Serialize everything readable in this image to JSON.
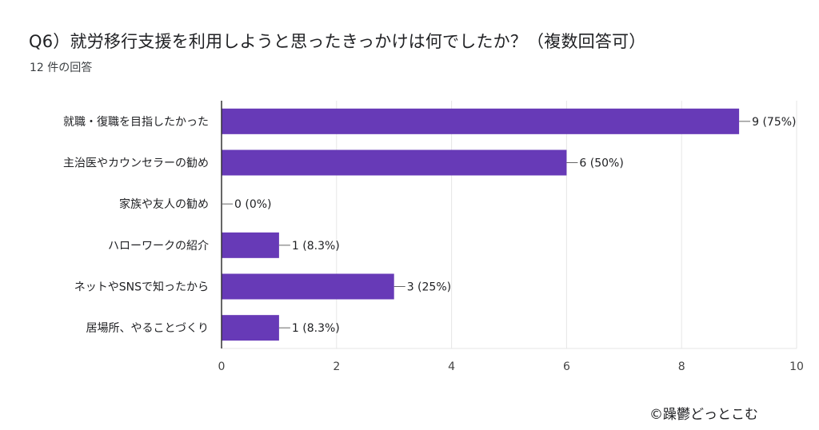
{
  "title": "Q6）就労移行支援を利用しようと思ったきっかけは何でしたか？（複数回答可）",
  "subtitle": "12 件の回答",
  "copyright": "©躁鬱どっとこむ",
  "colors": {
    "bar": "#673ab7",
    "grid": "#e6e6e6",
    "axis": "#333333"
  },
  "chart_data": {
    "type": "bar",
    "orientation": "horizontal",
    "categories": [
      "就職・復職を目指したかった",
      "主治医やカウンセラーの勧め",
      "家族や友人の勧め",
      "ハローワークの紹介",
      "ネットやSNSで知ったから",
      "居場所、やることづくり"
    ],
    "values": [
      9,
      6,
      0,
      1,
      3,
      1
    ],
    "value_labels": [
      "9 (75%)",
      "6 (50%)",
      "0 (0%)",
      "1 (8.3%)",
      "3 (25%)",
      "1 (8.3%)"
    ],
    "xlim": [
      0,
      10
    ],
    "xticks": [
      0,
      2,
      4,
      6,
      8,
      10
    ],
    "grid": true
  }
}
